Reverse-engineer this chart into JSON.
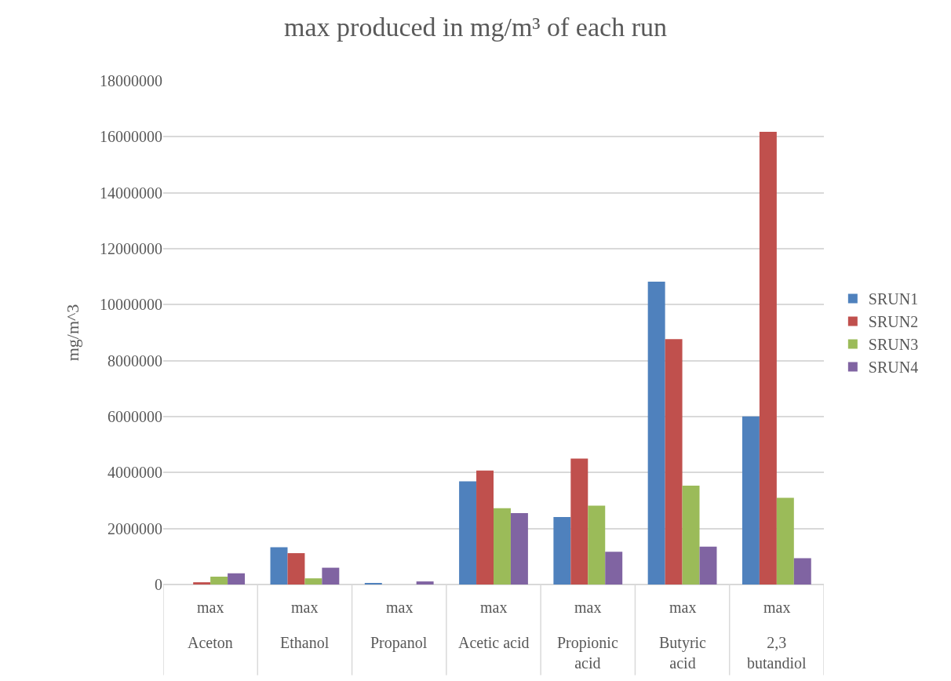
{
  "chart_data": {
    "type": "bar",
    "title": "max produced in mg/m³ of each run",
    "ylabel": "mg/m^3",
    "categories": [
      "max\nAceton",
      "max\nEthanol",
      "max\nPropanol",
      "max\nAcetic acid",
      "max\nPropionic acid",
      "max\nButyric acid",
      "max\n2,3 butandiol"
    ],
    "series": [
      {
        "name": "SRUN1",
        "color": "#4f81bd",
        "values": [
          0,
          1330000,
          30000,
          3690000,
          2410000,
          10820000,
          6010000
        ]
      },
      {
        "name": "SRUN2",
        "color": "#c0504d",
        "values": [
          80000,
          1120000,
          0,
          4070000,
          4500000,
          8770000,
          16180000
        ]
      },
      {
        "name": "SRUN3",
        "color": "#9bbb59",
        "values": [
          280000,
          220000,
          0,
          2730000,
          2820000,
          3530000,
          3100000
        ]
      },
      {
        "name": "SRUN4",
        "color": "#8064a2",
        "values": [
          400000,
          600000,
          110000,
          2550000,
          1170000,
          1350000,
          940000
        ]
      }
    ],
    "ylim": [
      0,
      18000000
    ],
    "yticks": [
      0,
      2000000,
      4000000,
      6000000,
      8000000,
      10000000,
      12000000,
      14000000,
      16000000,
      18000000
    ],
    "grid": "y",
    "legend": "right"
  }
}
